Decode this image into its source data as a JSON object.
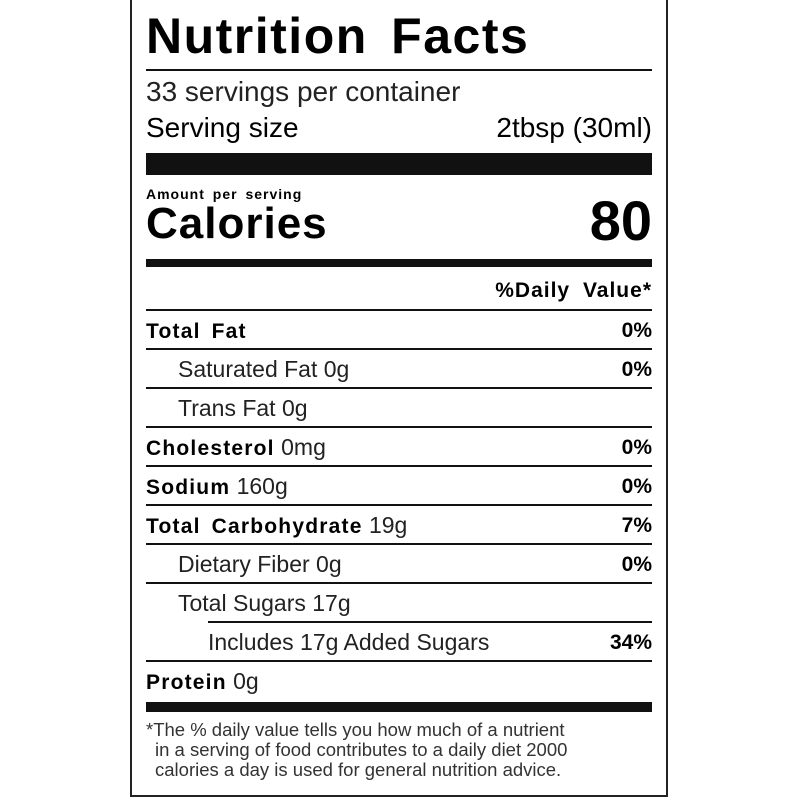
{
  "title": "Nutrition Facts",
  "servings_per_container": "33 servings per container",
  "serving_size_label": "Serving size",
  "serving_size_value": "2tbsp (30ml)",
  "amount_per_serving": "Amount per serving",
  "calories_label": "Calories",
  "calories_value": "80",
  "daily_value_header": "%Daily Value*",
  "nutrients": [
    {
      "label": "Total Fat",
      "amount": "",
      "pct": "0%"
    },
    {
      "label": "Saturated Fat 0g",
      "amount": "",
      "pct": "0%"
    },
    {
      "label": "Trans Fat 0g",
      "amount": "",
      "pct": ""
    },
    {
      "label": "Cholesterol",
      "amount": "0mg",
      "pct": "0%"
    },
    {
      "label": "Sodium",
      "amount": "160g",
      "pct": "0%"
    },
    {
      "label": "Total Carbohydrate",
      "amount": "19g",
      "pct": "7%"
    },
    {
      "label": "Dietary Fiber 0g",
      "amount": "",
      "pct": "0%"
    },
    {
      "label": "Total Sugars 17g",
      "amount": "",
      "pct": ""
    },
    {
      "label": "Includes 17g Added Sugars",
      "amount": "",
      "pct": "34%"
    },
    {
      "label": "Protein",
      "amount": "0g",
      "pct": ""
    }
  ],
  "footnote": [
    "*The % daily value tells you how much of a nutrient",
    "in a serving of food contributes to a daily diet 2000",
    "calories a day is used for general nutrition advice."
  ]
}
